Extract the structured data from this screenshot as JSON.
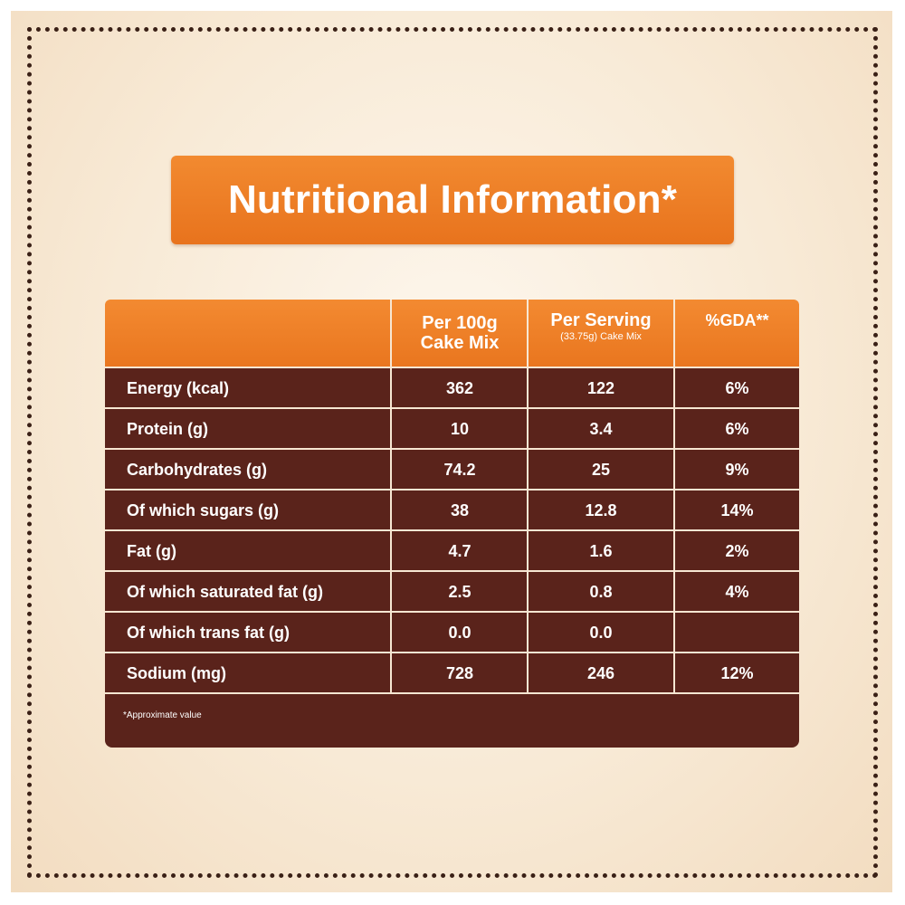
{
  "title": "Nutritional Information*",
  "table": {
    "headers": {
      "col1_main": "Per 100g",
      "col1_sub": "Cake Mix",
      "col2_main": "Per Serving",
      "col2_sub": "(33.75g) Cake Mix",
      "col3_main": "%GDA**"
    },
    "rows": [
      {
        "label": "Energy (kcal)",
        "per100": "362",
        "perServing": "122",
        "gda": "6%"
      },
      {
        "label": "Protein (g)",
        "per100": "10",
        "perServing": "3.4",
        "gda": "6%"
      },
      {
        "label": "Carbohydrates (g)",
        "per100": "74.2",
        "perServing": "25",
        "gda": "9%"
      },
      {
        "label": "Of which sugars (g)",
        "per100": "38",
        "perServing": "12.8",
        "gda": "14%"
      },
      {
        "label": "Fat (g)",
        "per100": "4.7",
        "perServing": "1.6",
        "gda": "2%"
      },
      {
        "label": "Of which saturated fat (g)",
        "per100": "2.5",
        "perServing": "0.8",
        "gda": "4%"
      },
      {
        "label": "Of which trans fat (g)",
        "per100": "0.0",
        "perServing": "0.0",
        "gda": ""
      },
      {
        "label": "Sodium (mg)",
        "per100": "728",
        "perServing": "246",
        "gda": "12%"
      }
    ],
    "footnote": "*Approximate value"
  },
  "colors": {
    "orange": "#ee7e27",
    "brown": "#5a231b",
    "cream": "#f8ead6"
  }
}
